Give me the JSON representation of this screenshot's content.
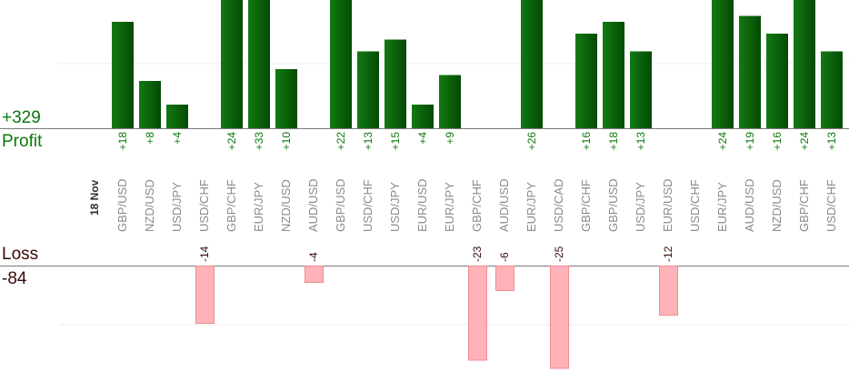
{
  "summary": {
    "profit_total": "+329",
    "profit_label": "Profit",
    "loss_label": "Loss",
    "loss_total": "-84"
  },
  "chart_data": {
    "type": "bar",
    "title": "",
    "date_label": "18 Nov",
    "categories": [
      "GBP/USD",
      "NZD/USD",
      "USD/JPY",
      "USD/CHF",
      "GBP/CHF",
      "EUR/JPY",
      "NZD/USD",
      "AUD/USD",
      "GBP/USD",
      "USD/CHF",
      "USD/JPY",
      "EUR/USD",
      "EUR/JPY",
      "GBP/CHF",
      "AUD/USD",
      "EUR/JPY",
      "USD/CAD",
      "GBP/CHF",
      "GBP/USD",
      "USD/JPY",
      "EUR/USD",
      "USD/CHF",
      "EUR/JPY",
      "AUD/USD",
      "NZD/USD",
      "GBP/CHF",
      "USD/CHF"
    ],
    "values": [
      18,
      8,
      4,
      -14,
      24,
      33,
      10,
      -4,
      22,
      13,
      15,
      4,
      9,
      -23,
      -6,
      26,
      -25,
      16,
      18,
      13,
      -12,
      0,
      24,
      19,
      16,
      24,
      13
    ],
    "value_labels": [
      "+18",
      "+8",
      "+4",
      "-14",
      "+24",
      "+33",
      "+10",
      "-4",
      "+22",
      "+13",
      "+15",
      "+4",
      "+9",
      "-23",
      "-6",
      "+26",
      "-25",
      "+16",
      "+18",
      "+13",
      "-12",
      "",
      "+24",
      "+19",
      "+16",
      "+24",
      "+13"
    ],
    "series": [
      {
        "name": "Profit",
        "color": "#0b6b0b"
      },
      {
        "name": "Loss",
        "color": "#ffb3b8"
      }
    ],
    "grid": true
  }
}
